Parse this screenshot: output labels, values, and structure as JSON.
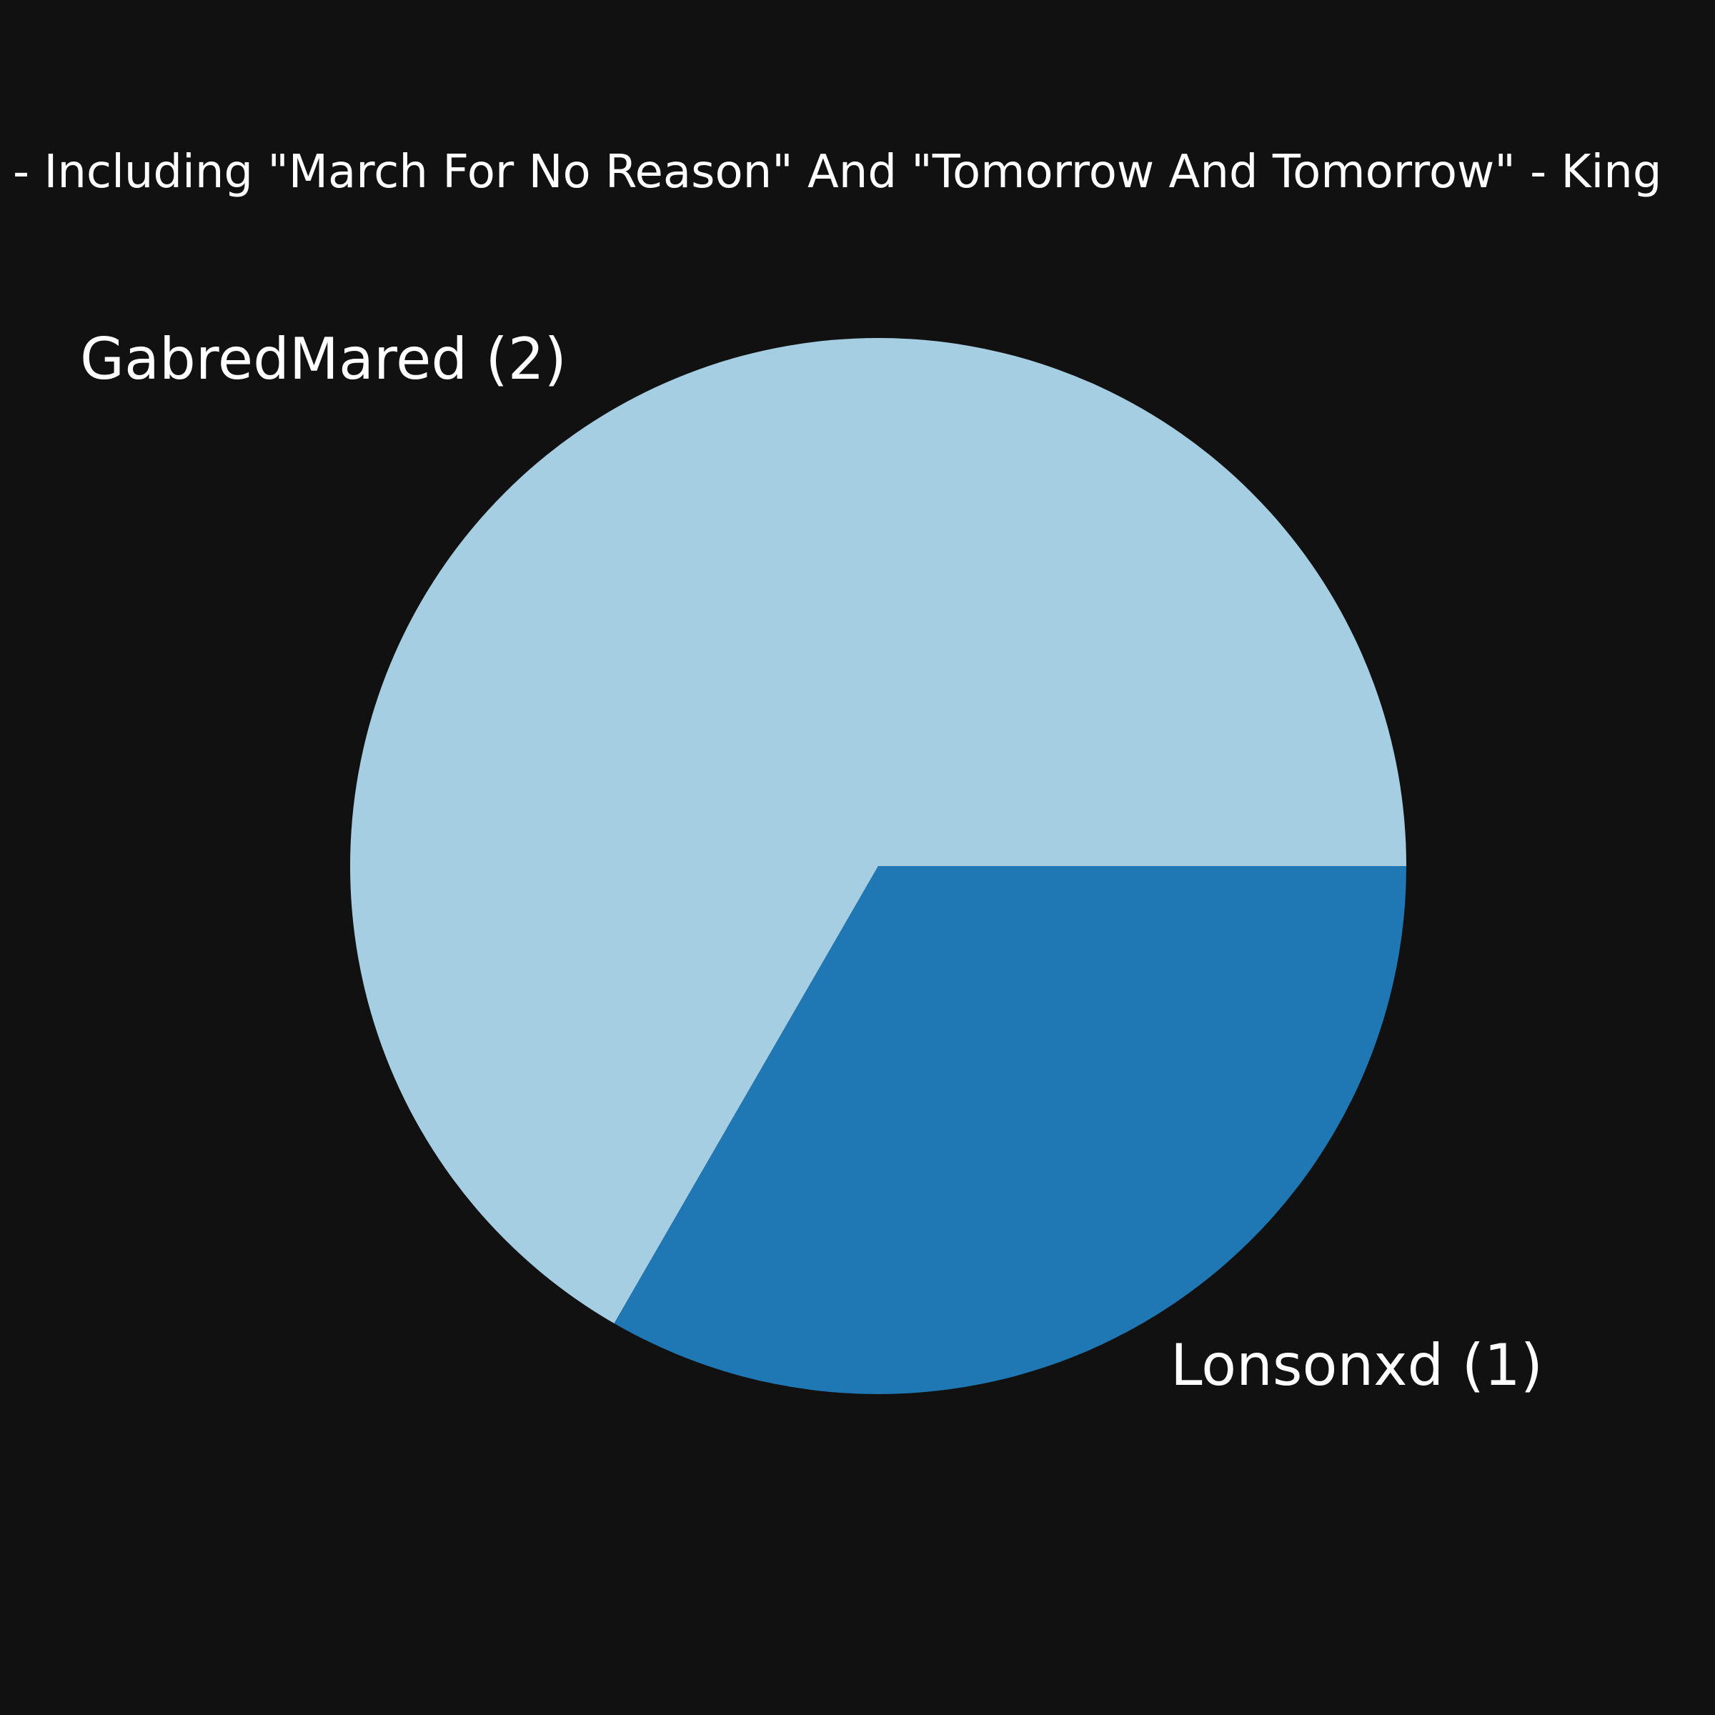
{
  "chart_data": {
    "type": "pie",
    "title": "- Including \"March For No Reason\" And \"Tomorrow And Tomorrow\" - King",
    "slices": [
      {
        "label": "GabredMared (2)",
        "value": 2,
        "color": "#a6cee3"
      },
      {
        "label": "Lonsonxd (1)",
        "value": 1,
        "color": "#1f78b4"
      }
    ],
    "start_angle_deg": 0,
    "direction": "clockwise-on-screen",
    "legend": "none",
    "background_color": "#111111",
    "text_color": "#ffffff"
  }
}
